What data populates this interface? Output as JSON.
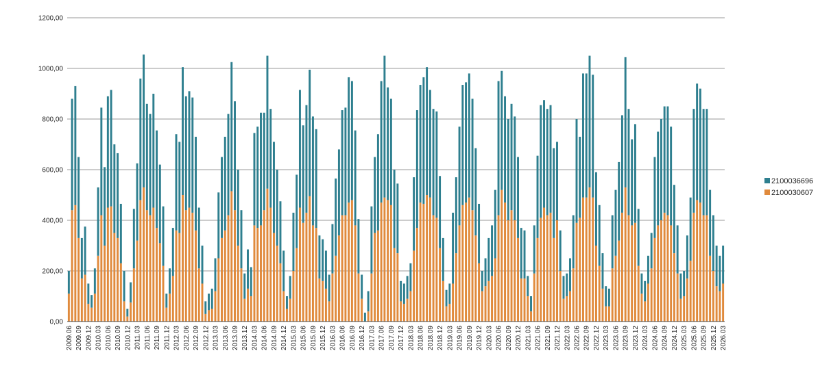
{
  "chart_data": {
    "type": "bar",
    "stacked": true,
    "grid": "horizontal",
    "legend_position": "right",
    "ylim": [
      0,
      1200
    ],
    "yticks": [
      0,
      200,
      400,
      600,
      800,
      1000,
      1200
    ],
    "ytick_labels": [
      "0,00",
      "200,00",
      "400,00",
      "600,00",
      "800,00",
      "1000,00",
      "1200,00"
    ],
    "categories_start": "2009.06",
    "categories_end": "2026.03",
    "label_every": 3,
    "series": [
      {
        "name": "2100030607",
        "color": "#E08A3C",
        "values": [
          110,
          440,
          460,
          330,
          170,
          185,
          70,
          55,
          110,
          260,
          420,
          300,
          450,
          455,
          350,
          330,
          230,
          80,
          20,
          75,
          210,
          320,
          480,
          530,
          440,
          420,
          450,
          370,
          310,
          220,
          55,
          110,
          180,
          360,
          350,
          500,
          440,
          450,
          430,
          360,
          210,
          150,
          30,
          45,
          50,
          120,
          250,
          330,
          360,
          420,
          515,
          440,
          300,
          210,
          90,
          130,
          100,
          380,
          370,
          380,
          440,
          525,
          450,
          350,
          300,
          230,
          120,
          50,
          90,
          200,
          290,
          450,
          390,
          430,
          495,
          380,
          370,
          170,
          160,
          130,
          80,
          190,
          260,
          340,
          420,
          420,
          470,
          480,
          380,
          190,
          90,
          0,
          40,
          190,
          350,
          360,
          470,
          490,
          480,
          460,
          290,
          270,
          80,
          70,
          90,
          120,
          280,
          370,
          470,
          465,
          500,
          490,
          420,
          410,
          290,
          160,
          60,
          70,
          150,
          270,
          380,
          460,
          470,
          490,
          440,
          340,
          230,
          120,
          140,
          160,
          180,
          250,
          420,
          520,
          470,
          400,
          440,
          400,
          330,
          170,
          170,
          100,
          40,
          190,
          330,
          410,
          450,
          420,
          430,
          330,
          400,
          200,
          90,
          100,
          120,
          210,
          390,
          410,
          490,
          490,
          530,
          490,
          300,
          220,
          130,
          60,
          60,
          210,
          260,
          320,
          430,
          530,
          420,
          380,
          390,
          220,
          110,
          80,
          150,
          210,
          330,
          380,
          400,
          430,
          420,
          380,
          270,
          190,
          90,
          100,
          170,
          240,
          430,
          480,
          470,
          420,
          420,
          260,
          200,
          140,
          120,
          150
        ],
        "colors_note": "orange"
      },
      {
        "name": "2100036696",
        "color": "#2E7F8F",
        "values": [
          90,
          440,
          470,
          320,
          160,
          190,
          80,
          50,
          100,
          270,
          425,
          310,
          440,
          460,
          350,
          335,
          235,
          120,
          30,
          80,
          235,
          305,
          480,
          525,
          420,
          400,
          450,
          385,
          310,
          235,
          55,
          100,
          190,
          380,
          360,
          505,
          450,
          460,
          455,
          370,
          240,
          150,
          50,
          65,
          80,
          130,
          260,
          320,
          370,
          400,
          510,
          430,
          300,
          230,
          100,
          155,
          115,
          365,
          400,
          445,
          385,
          525,
          390,
          360,
          300,
          245,
          160,
          50,
          90,
          230,
          290,
          465,
          385,
          425,
          500,
          430,
          390,
          170,
          165,
          150,
          105,
          195,
          305,
          340,
          415,
          425,
          495,
          470,
          375,
          215,
          95,
          35,
          80,
          265,
          300,
          380,
          480,
          560,
          445,
          420,
          310,
          275,
          80,
          80,
          90,
          110,
          290,
          465,
          465,
          500,
          505,
          425,
          420,
          420,
          285,
          170,
          65,
          80,
          280,
          300,
          390,
          475,
          475,
          490,
          440,
          345,
          235,
          80,
          110,
          170,
          200,
          270,
          530,
          470,
          420,
          400,
          420,
          410,
          320,
          200,
          190,
          80,
          60,
          190,
          325,
          445,
          425,
          420,
          425,
          355,
          310,
          160,
          90,
          90,
          130,
          210,
          410,
          320,
          490,
          490,
          520,
          485,
          290,
          240,
          140,
          80,
          70,
          210,
          260,
          310,
          385,
          515,
          420,
          340,
          390,
          225,
          80,
          80,
          110,
          140,
          320,
          370,
          400,
          420,
          430,
          390,
          270,
          190,
          100,
          100,
          170,
          250,
          410,
          460,
          450,
          420,
          420,
          260,
          220,
          160,
          140,
          150
        ]
      }
    ]
  }
}
